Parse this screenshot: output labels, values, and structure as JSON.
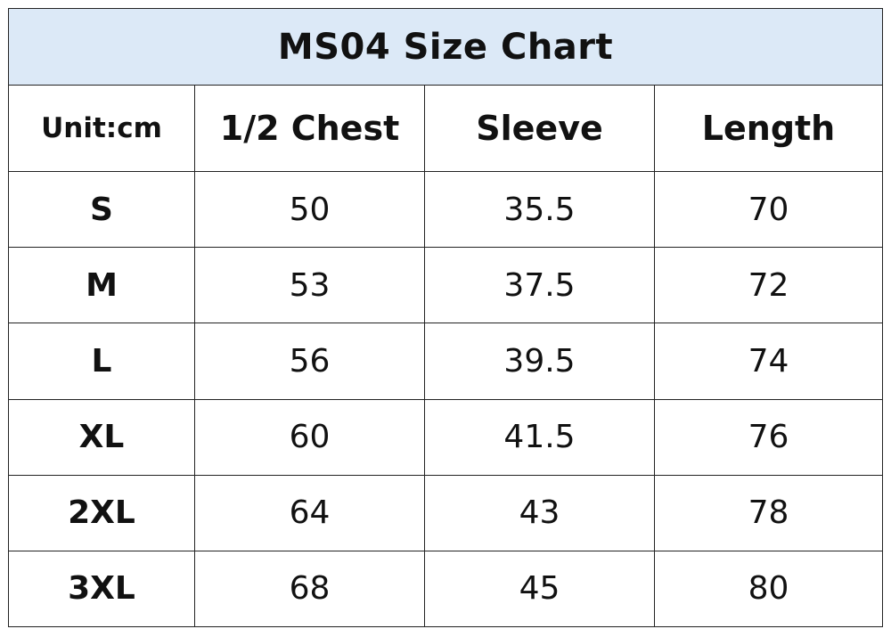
{
  "title": "MS04 Size Chart",
  "title_bg": "#dce9f7",
  "headers": [
    "Unit:cm",
    "1/2 Chest",
    "Sleeve",
    "Length"
  ],
  "rows": [
    {
      "size": "S",
      "chest": "50",
      "sleeve": "35.5",
      "length": "70"
    },
    {
      "size": "M",
      "chest": "53",
      "sleeve": "37.5",
      "length": "72"
    },
    {
      "size": "L",
      "chest": "56",
      "sleeve": "39.5",
      "length": "74"
    },
    {
      "size": "XL",
      "chest": "60",
      "sleeve": "41.5",
      "length": "76"
    },
    {
      "size": "2XL",
      "chest": "64",
      "sleeve": "43",
      "length": "78"
    },
    {
      "size": "3XL",
      "chest": "68",
      "sleeve": "45",
      "length": "80"
    }
  ]
}
